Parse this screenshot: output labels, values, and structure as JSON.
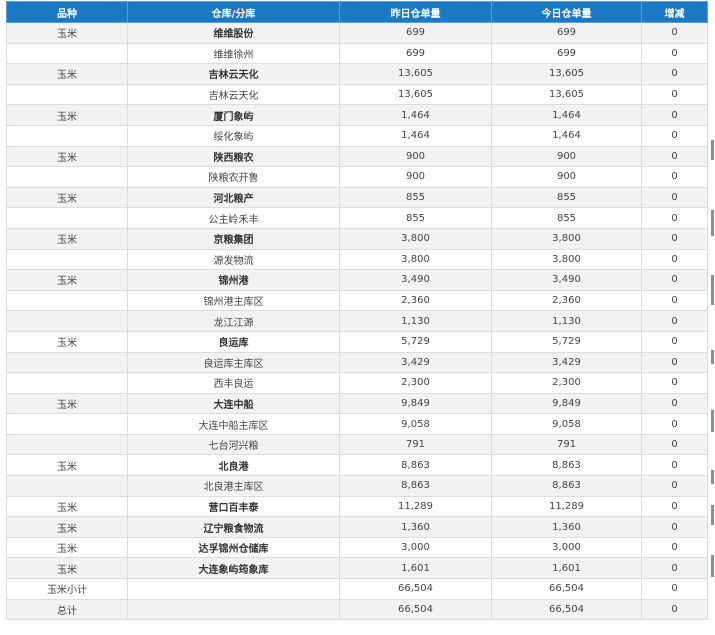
{
  "header": {
    "variety": "品种",
    "warehouse": "仓库/分库",
    "yesterday": "昨日仓单量",
    "today": "今日仓单量",
    "change": "增减"
  },
  "rows": [
    {
      "variety": "玉米",
      "warehouse": "维维股份",
      "yesterday": "699",
      "today": "699",
      "change": "0",
      "bold": true
    },
    {
      "variety": "",
      "warehouse": "维维徐州",
      "yesterday": "699",
      "today": "699",
      "change": "0",
      "bold": false
    },
    {
      "variety": "玉米",
      "warehouse": "吉林云天化",
      "yesterday": "13,605",
      "today": "13,605",
      "change": "0",
      "bold": true
    },
    {
      "variety": "",
      "warehouse": "吉林云天化",
      "yesterday": "13,605",
      "today": "13,605",
      "change": "0",
      "bold": false
    },
    {
      "variety": "玉米",
      "warehouse": "厦门象屿",
      "yesterday": "1,464",
      "today": "1,464",
      "change": "0",
      "bold": true
    },
    {
      "variety": "",
      "warehouse": "绥化象屿",
      "yesterday": "1,464",
      "today": "1,464",
      "change": "0",
      "bold": false
    },
    {
      "variety": "玉米",
      "warehouse": "陕西粮农",
      "yesterday": "900",
      "today": "900",
      "change": "0",
      "bold": true
    },
    {
      "variety": "",
      "warehouse": "陕粮农开鲁",
      "yesterday": "900",
      "today": "900",
      "change": "0",
      "bold": false
    },
    {
      "variety": "玉米",
      "warehouse": "河北粮产",
      "yesterday": "855",
      "today": "855",
      "change": "0",
      "bold": true
    },
    {
      "variety": "",
      "warehouse": "公主岭禾丰",
      "yesterday": "855",
      "today": "855",
      "change": "0",
      "bold": false
    },
    {
      "variety": "玉米",
      "warehouse": "京粮集团",
      "yesterday": "3,800",
      "today": "3,800",
      "change": "0",
      "bold": true
    },
    {
      "variety": "",
      "warehouse": "源发物流",
      "yesterday": "3,800",
      "today": "3,800",
      "change": "0",
      "bold": false
    },
    {
      "variety": "玉米",
      "warehouse": "锦州港",
      "yesterday": "3,490",
      "today": "3,490",
      "change": "0",
      "bold": true
    },
    {
      "variety": "",
      "warehouse": "锦州港主库区",
      "yesterday": "2,360",
      "today": "2,360",
      "change": "0",
      "bold": false
    },
    {
      "variety": "",
      "warehouse": "龙江江源",
      "yesterday": "1,130",
      "today": "1,130",
      "change": "0",
      "bold": false
    },
    {
      "variety": "玉米",
      "warehouse": "良运库",
      "yesterday": "5,729",
      "today": "5,729",
      "change": "0",
      "bold": true
    },
    {
      "variety": "",
      "warehouse": "良运库主库区",
      "yesterday": "3,429",
      "today": "3,429",
      "change": "0",
      "bold": false
    },
    {
      "variety": "",
      "warehouse": "西丰良运",
      "yesterday": "2,300",
      "today": "2,300",
      "change": "0",
      "bold": false
    },
    {
      "variety": "玉米",
      "warehouse": "大连中船",
      "yesterday": "9,849",
      "today": "9,849",
      "change": "0",
      "bold": true
    },
    {
      "variety": "",
      "warehouse": "大连中船主库区",
      "yesterday": "9,058",
      "today": "9,058",
      "change": "0",
      "bold": false
    },
    {
      "variety": "",
      "warehouse": "七台河兴粮",
      "yesterday": "791",
      "today": "791",
      "change": "0",
      "bold": false
    },
    {
      "variety": "玉米",
      "warehouse": "北良港",
      "yesterday": "8,863",
      "today": "8,863",
      "change": "0",
      "bold": true
    },
    {
      "variety": "",
      "warehouse": "北良港主库区",
      "yesterday": "8,863",
      "today": "8,863",
      "change": "0",
      "bold": false
    },
    {
      "variety": "玉米",
      "warehouse": "营口百丰泰",
      "yesterday": "11,289",
      "today": "11,289",
      "change": "0",
      "bold": true
    },
    {
      "variety": "玉米",
      "warehouse": "辽宁粮食物流",
      "yesterday": "1,360",
      "today": "1,360",
      "change": "0",
      "bold": true
    },
    {
      "variety": "玉米",
      "warehouse": "达孚锦州仓储库",
      "yesterday": "3,000",
      "today": "3,000",
      "change": "0",
      "bold": true
    },
    {
      "variety": "玉米",
      "warehouse": "大连象屿筠象库",
      "yesterday": "1,601",
      "today": "1,601",
      "change": "0",
      "bold": true
    },
    {
      "variety": "玉米小计",
      "warehouse": "",
      "yesterday": "66,504",
      "today": "66,504",
      "change": "0",
      "bold": false
    },
    {
      "variety": "总计",
      "warehouse": "",
      "yesterday": "66,504",
      "today": "66,504",
      "change": "0",
      "bold": false
    }
  ]
}
